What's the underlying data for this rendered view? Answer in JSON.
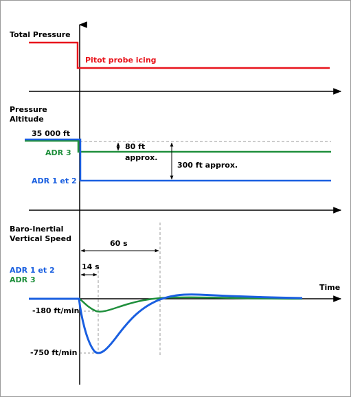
{
  "colors": {
    "border": "#9a9a9a",
    "axis": "#000000",
    "total_pressure": "#e8141c",
    "adr12": "#1a5fe0",
    "adr3": "#1f8f3c",
    "dashed": "#9a9a9a"
  },
  "labels": {
    "total_pressure": "Total Pressure",
    "pitot_icing": "Pitot probe icing",
    "pressure_altitude_1": "Pressure",
    "pressure_altitude_2": "Altitude",
    "alt_35000": "35 000 ft",
    "adr3_alt": "ADR 3",
    "adr12_alt": "ADR 1 et 2",
    "delta_80_1": "80 ft",
    "delta_80_2": "approx.",
    "delta_300": "300 ft approx.",
    "baro_1": "Baro-Inertial",
    "baro_2": "Vertical Speed",
    "dt_60": "60 s",
    "dt_14": "14 s",
    "adr12_vs": "ADR 1 et 2",
    "adr3_vs": "ADR 3",
    "time": "Time",
    "vs_180": "-180 ft/min",
    "vs_750": "-750 ft/min"
  },
  "arrow_icon": "arrow-head-icon"
}
